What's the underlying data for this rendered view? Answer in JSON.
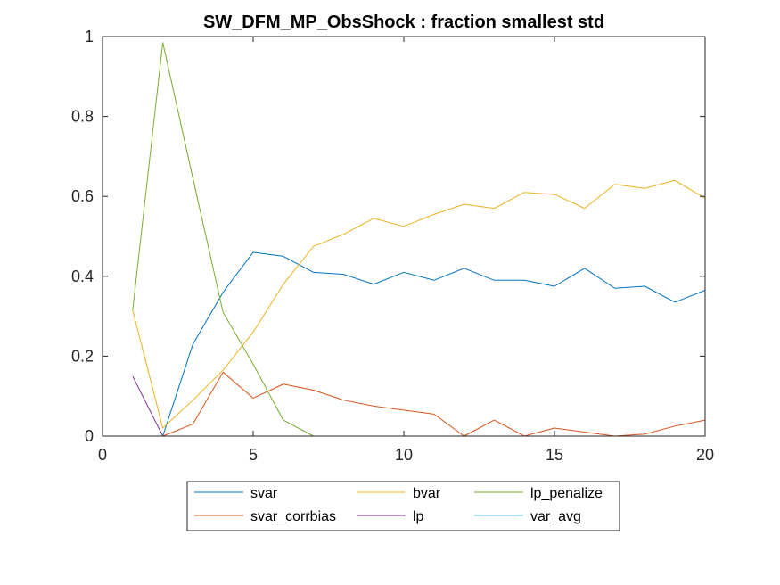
{
  "chart_data": {
    "type": "line",
    "title": "SW_DFM_MP_ObsShock : fraction smallest std",
    "xlabel": "",
    "ylabel": "",
    "xlim": [
      0,
      20
    ],
    "ylim": [
      0,
      1
    ],
    "xticks": [
      0,
      5,
      10,
      15,
      20
    ],
    "yticks": [
      0,
      0.2,
      0.4,
      0.6,
      0.8,
      1
    ],
    "xtick_labels": [
      "0",
      "5",
      "10",
      "15",
      "20"
    ],
    "ytick_labels": [
      "0",
      "0.2",
      "0.4",
      "0.6",
      "0.8",
      "1"
    ],
    "grid": false,
    "legend_position": "bottom-outside",
    "x": [
      1,
      2,
      3,
      4,
      5,
      6,
      7,
      8,
      9,
      10,
      11,
      12,
      13,
      14,
      15,
      16,
      17,
      18,
      19,
      20
    ],
    "series": [
      {
        "name": "svar",
        "color": "#0072BD",
        "values": [
          0,
          0,
          0.23,
          0.36,
          0.46,
          0.45,
          0.41,
          0.405,
          0.38,
          0.41,
          0.39,
          0.42,
          0.39,
          0.39,
          0.375,
          0.42,
          0.37,
          0.375,
          0.335,
          0.365
        ]
      },
      {
        "name": "svar_corrbias",
        "color": "#D95319",
        "values": [
          0,
          0,
          0.03,
          0.16,
          0.095,
          0.13,
          0.115,
          0.09,
          0.075,
          0.065,
          0.055,
          0,
          0.04,
          0,
          0.02,
          0.01,
          0,
          0.005,
          0.025,
          0.04
        ]
      },
      {
        "name": "bvar",
        "color": "#EDB120",
        "values": [
          0.315,
          0.02,
          0.09,
          0.165,
          0.26,
          0.38,
          0.475,
          0.505,
          0.545,
          0.525,
          0.555,
          0.58,
          0.57,
          0.61,
          0.605,
          0.57,
          0.63,
          0.62,
          0.64,
          0.595
        ]
      },
      {
        "name": "lp",
        "color": "#7E2F8E",
        "values": [
          0.15,
          0,
          0,
          0,
          0,
          0,
          0,
          0,
          0,
          0,
          0,
          0,
          0,
          0,
          0,
          0,
          0,
          0,
          0,
          0
        ]
      },
      {
        "name": "lp_penalize",
        "color": "#77AC30",
        "values": [
          0.315,
          0.985,
          0.645,
          0.31,
          0.18,
          0.04,
          0,
          0,
          0,
          0,
          0,
          0,
          0,
          0,
          0,
          0,
          0,
          0,
          0,
          0
        ]
      },
      {
        "name": "var_avg",
        "color": "#4DBEEE",
        "values": [
          0,
          0,
          0,
          0,
          0,
          0,
          0,
          0,
          0,
          0,
          0,
          0,
          0,
          0,
          0,
          0,
          0,
          0,
          0,
          0
        ]
      }
    ],
    "legend_columns": [
      [
        "svar",
        "svar_corrbias"
      ],
      [
        "bvar",
        "lp"
      ],
      [
        "lp_penalize",
        "var_avg"
      ]
    ]
  }
}
